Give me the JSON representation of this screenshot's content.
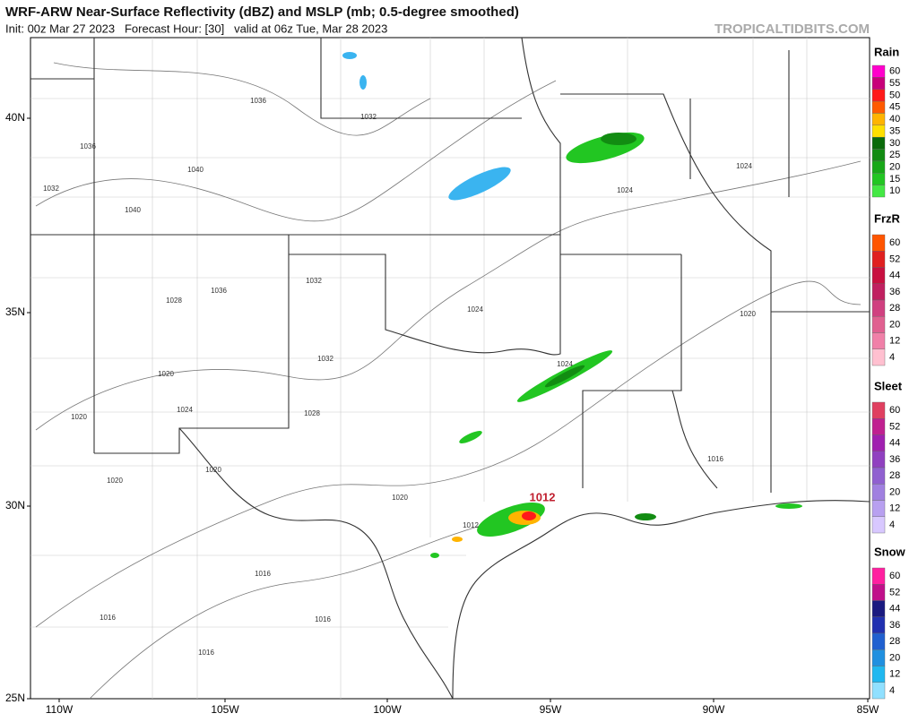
{
  "header": {
    "title": "WRF-ARW Near-Surface Reflectivity (dBZ) and MSLP (mb; 0.5-degree smoothed)",
    "subtitle": "Init: 00z Mar 27 2023   Forecast Hour: [30]   valid at 06z Tue, Mar 28 2023",
    "site": "TROPICALTIDBITS.COM"
  },
  "axes": {
    "lat_labels": [
      "40N",
      "35N",
      "30N",
      "25N"
    ],
    "lon_labels": [
      "110W",
      "105W",
      "100W",
      "95W",
      "90W",
      "85W"
    ]
  },
  "isobar_labels": [
    "1036",
    "1036",
    "1040",
    "1032",
    "1040",
    "1036",
    "1032",
    "1032",
    "1028",
    "1024",
    "1020",
    "1032",
    "1024",
    "1028",
    "1024",
    "1024",
    "1024",
    "1020",
    "1020",
    "1020",
    "1020",
    "1016",
    "1016",
    "1016",
    "1016",
    "1016",
    "1012",
    "1012",
    "1020"
  ],
  "legend": [
    {
      "title": "Rain",
      "levels": [
        60,
        55,
        50,
        45,
        40,
        35,
        30,
        25,
        20,
        15,
        10
      ],
      "colors": [
        "#ff00cc",
        "#c8007a",
        "#ff1a1a",
        "#ff5a00",
        "#ffb400",
        "#ffe000",
        "#0a6a0a",
        "#128c12",
        "#18a818",
        "#22c622",
        "#44e844"
      ]
    },
    {
      "title": "FrzR",
      "levels": [
        60,
        52,
        44,
        36,
        28,
        20,
        12,
        4
      ],
      "colors": [
        "#ff5500",
        "#e02020",
        "#c81040",
        "#c02060",
        "#d04080",
        "#e06090",
        "#f080a8",
        "#ffc0d0"
      ]
    },
    {
      "title": "Sleet",
      "levels": [
        60,
        52,
        44,
        36,
        28,
        20,
        12,
        4
      ],
      "colors": [
        "#e04060",
        "#c02090",
        "#a020b0",
        "#9040c0",
        "#9060d0",
        "#a080e0",
        "#b8a0f0",
        "#d8c8ff"
      ]
    },
    {
      "title": "Snow",
      "levels": [
        60,
        52,
        44,
        36,
        28,
        20,
        12,
        4
      ],
      "colors": [
        "#ff20a0",
        "#c0108a",
        "#1a1a80",
        "#2030b0",
        "#2060d0",
        "#2090e0",
        "#20b8f0",
        "#90e0ff"
      ]
    }
  ]
}
